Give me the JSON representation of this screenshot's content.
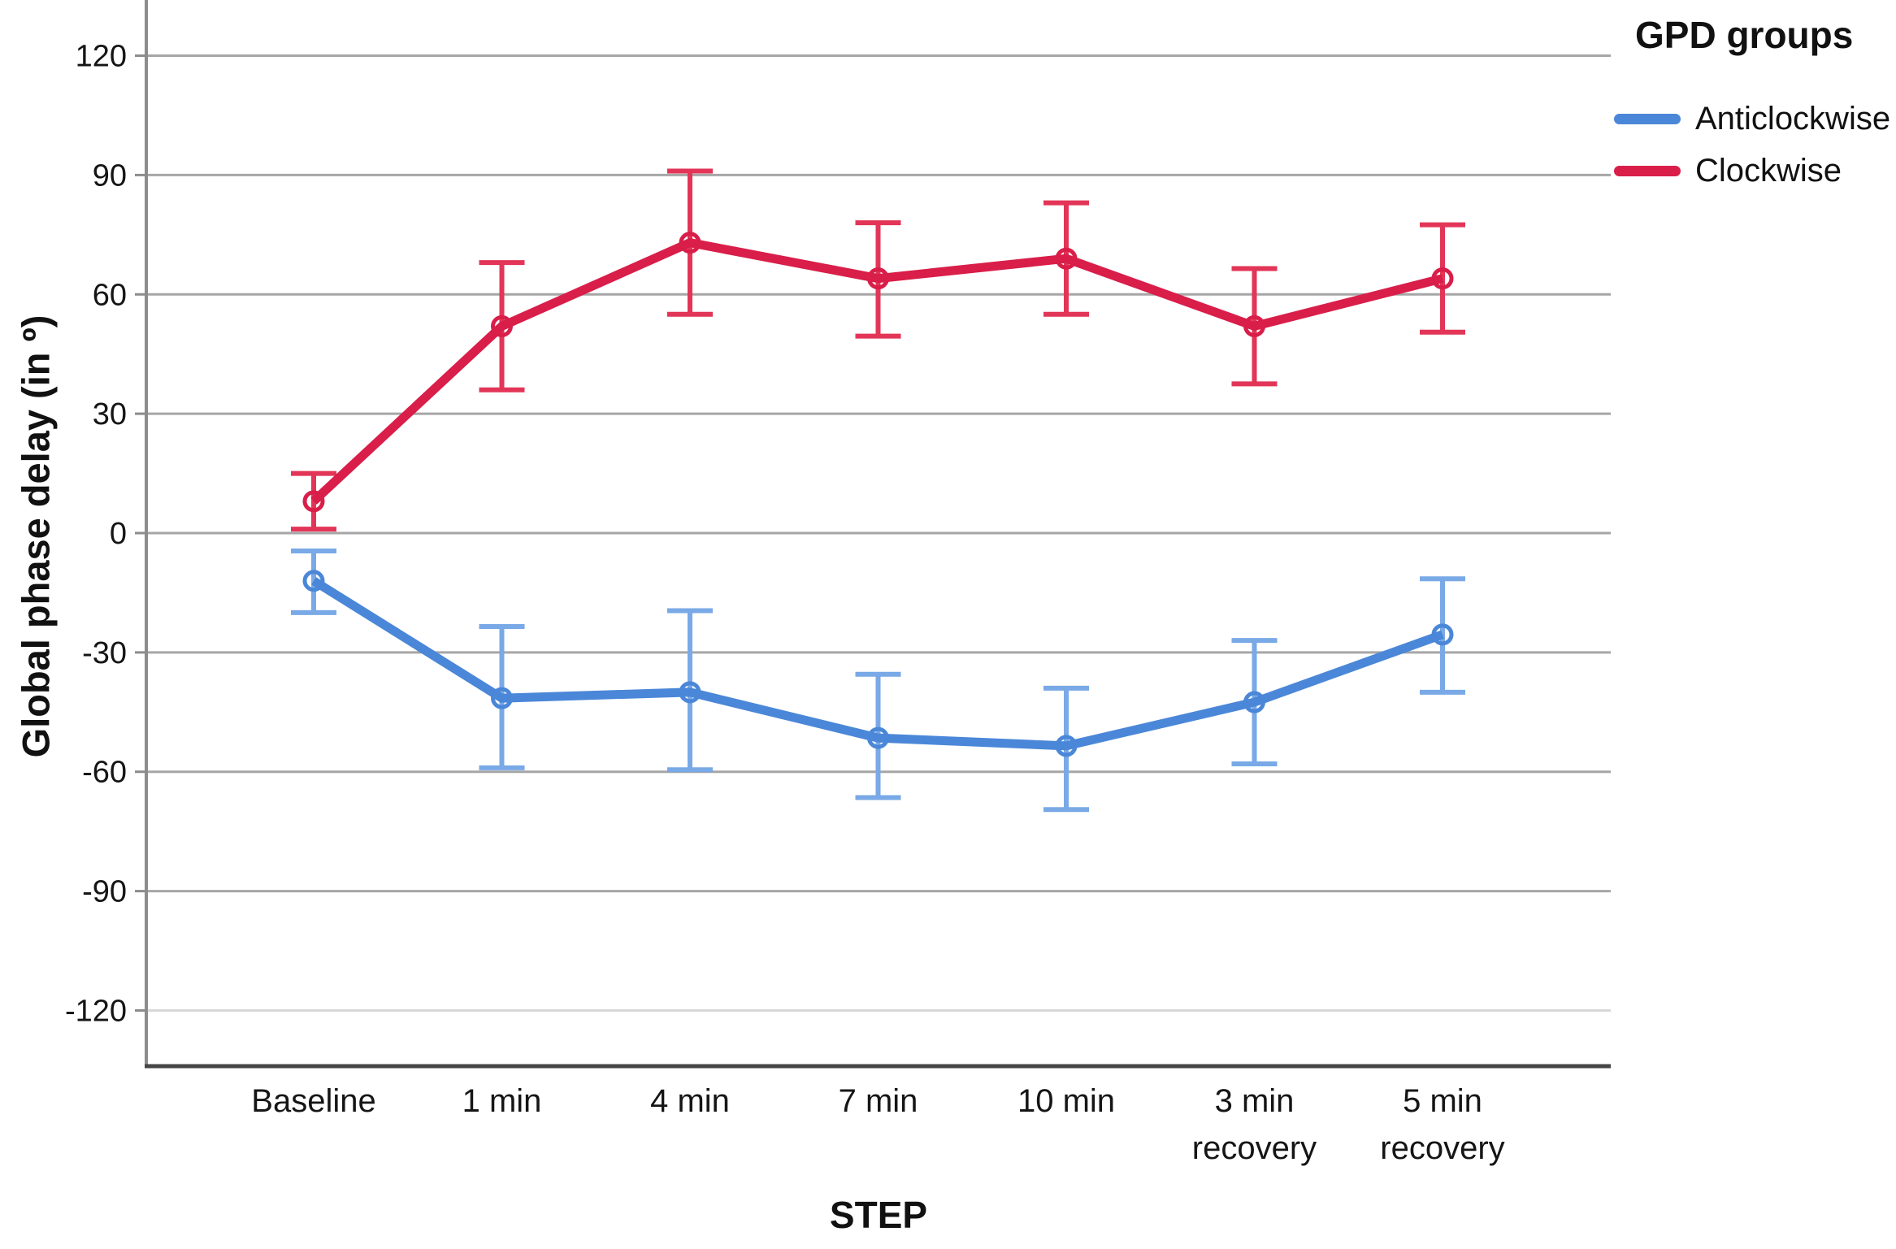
{
  "chart_data": {
    "type": "line",
    "title": "",
    "xlabel": "STEP",
    "ylabel": "Global phase delay (in º)",
    "legend": {
      "title": "GPD groups",
      "position": "top-right"
    },
    "categories": [
      "Baseline",
      "1 min",
      "4 min",
      "7 min",
      "10 min",
      "3 min recovery",
      "5 min recovery"
    ],
    "categories_display": [
      [
        "Baseline"
      ],
      [
        "1 min"
      ],
      [
        "4 min"
      ],
      [
        "7 min"
      ],
      [
        "10 min"
      ],
      [
        "3 min",
        "recovery"
      ],
      [
        "5 min",
        "recovery"
      ]
    ],
    "yaxis": {
      "ticks": [
        120,
        90,
        60,
        30,
        0,
        -30,
        -60,
        -90,
        -120
      ],
      "ylim": [
        -134,
        134
      ],
      "grid": true
    },
    "marker": "open-circle",
    "error_bars": true,
    "series": [
      {
        "name": "Anticlockwise",
        "color": "#4B87D8",
        "error_color": "#79A9E6",
        "values": [
          -12,
          -41.5,
          -40,
          -51.5,
          -53.5,
          -42.5,
          -25.5
        ],
        "error_low": [
          -20,
          -59,
          -59.5,
          -66.5,
          -69.5,
          -58,
          -40
        ],
        "error_high": [
          -4.5,
          -23.5,
          -19.5,
          -35.5,
          -39,
          -27,
          -11.5
        ]
      },
      {
        "name": "Clockwise",
        "color": "#D91E49",
        "error_color": "#E23557",
        "values": [
          8,
          52,
          73,
          64,
          69,
          52,
          64
        ],
        "error_low": [
          1,
          36,
          55,
          49.5,
          55,
          37.5,
          50.5
        ],
        "error_high": [
          15,
          68,
          91,
          78,
          83,
          66.5,
          77.5
        ]
      }
    ]
  }
}
